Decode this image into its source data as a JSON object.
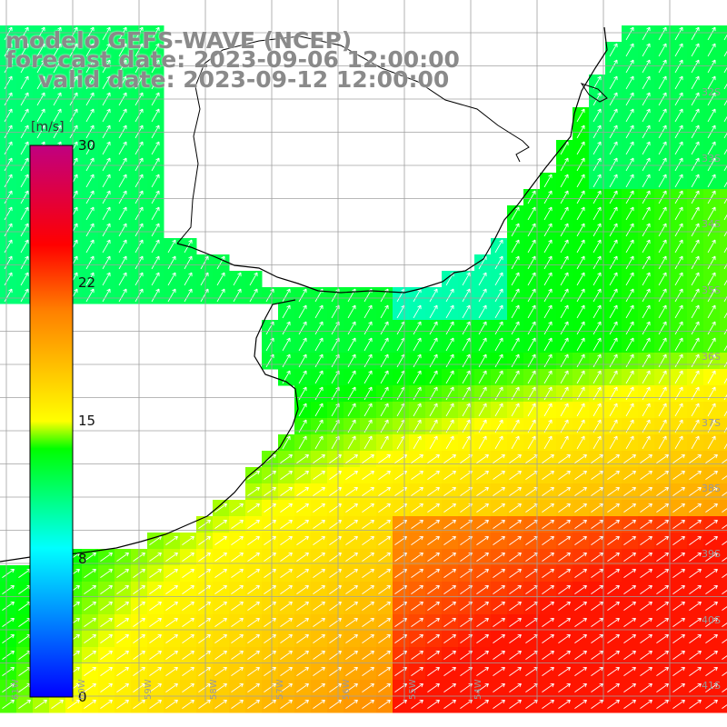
{
  "title": {
    "line1": "modelo GEFS-WAVE (NCEP)",
    "line2": "forecast date: 2023-09-06 12:00:00",
    "line3": "valid date: 2023-09-12 12:00:00"
  },
  "colorbar": {
    "unit": "[m/s]",
    "min": 0,
    "max": 30,
    "ticks": [
      "30",
      "22",
      "15",
      "8",
      "0"
    ],
    "tick_values": [
      30,
      22,
      15,
      8,
      0
    ],
    "colors": [
      "#0000ff",
      "#00ffff",
      "#00ff00",
      "#ffff00",
      "#ff8000",
      "#ff0000",
      "#c00080"
    ]
  },
  "lat_labels": [
    "32S",
    "33S",
    "34S",
    "35S",
    "36S",
    "37S",
    "38S",
    "39S",
    "40S",
    "41S"
  ],
  "lon_labels": [
    "61W",
    "60W",
    "59W",
    "58W",
    "57W",
    "56W",
    "55W",
    "54W"
  ],
  "colors": {
    "land": "#ffffff",
    "coastline": "#000000",
    "grid": "#a0a0a0",
    "arrows": "#ffffff"
  }
}
